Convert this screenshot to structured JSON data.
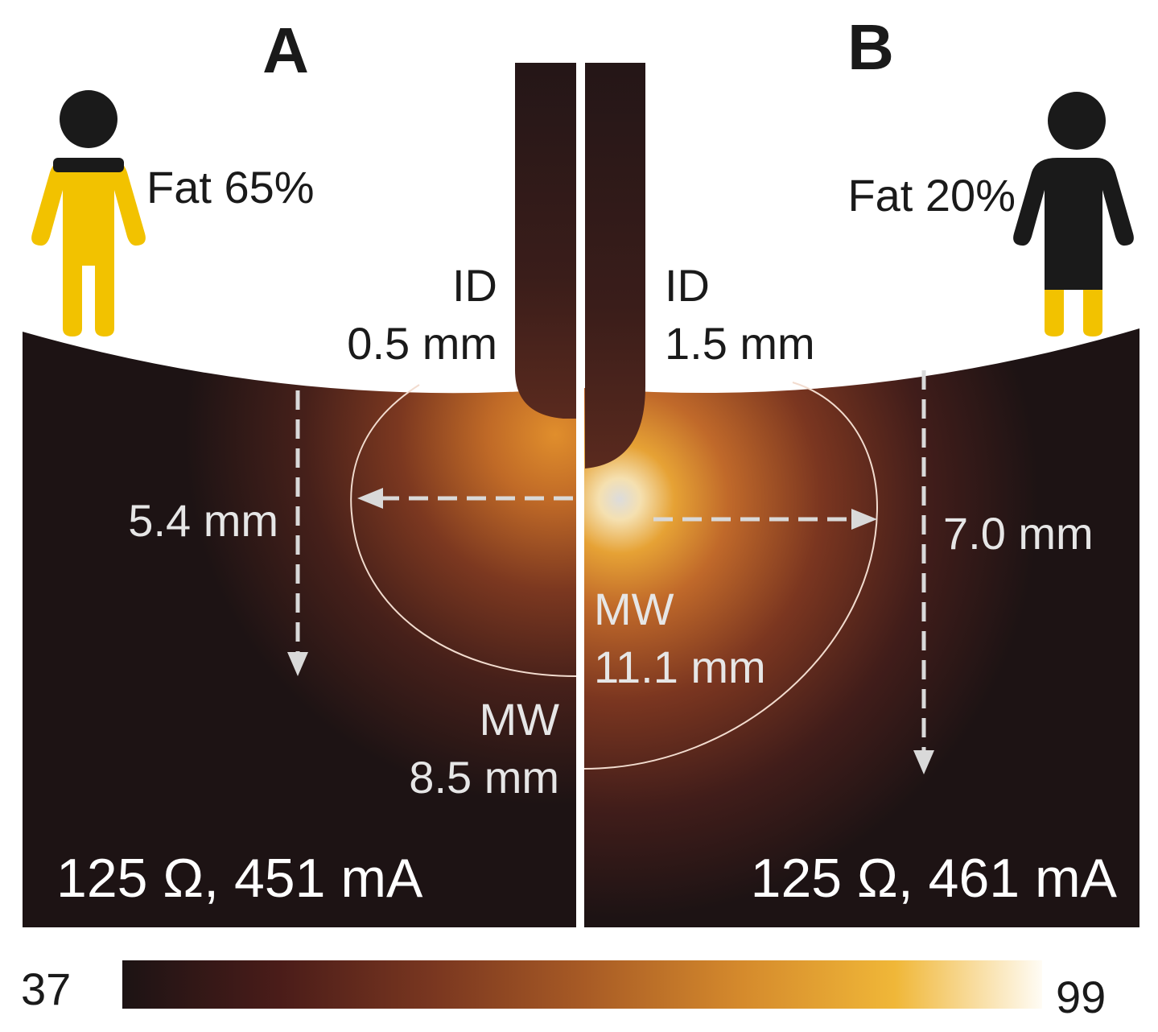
{
  "panel_a": {
    "letter": "A",
    "fat_label": "Fat 65%",
    "id_line1": "ID",
    "id_line2": "0.5 mm",
    "depth_label": "5.4 mm",
    "mw_line1": "MW",
    "mw_line2": "8.5 mm",
    "electrical": "125 Ω, 451 mA",
    "figure_colors": {
      "fat": "#f2c200",
      "lean": "#1a1a1a"
    }
  },
  "panel_b": {
    "letter": "B",
    "fat_label": "Fat 20%",
    "id_line1": "ID",
    "id_line2": "1.5 mm",
    "depth_label": "7.0 mm",
    "mw_line1": "MW",
    "mw_line2": "11.1 mm",
    "electrical": "125 Ω, 461 mA",
    "figure_colors": {
      "fat": "#f2c200",
      "lean": "#1a1a1a"
    }
  },
  "colorbar": {
    "min_label": "37",
    "max_label": "99",
    "stops": [
      "#1c1314",
      "#4a1c19",
      "#7a3720",
      "#a75a25",
      "#d4892c",
      "#f0b738",
      "#fffcf5"
    ]
  },
  "colors": {
    "background": "#1d1314",
    "heat_core": "#e0e0e0",
    "annotation": "#e6e6e6",
    "arrow": "#d9d9d9"
  }
}
